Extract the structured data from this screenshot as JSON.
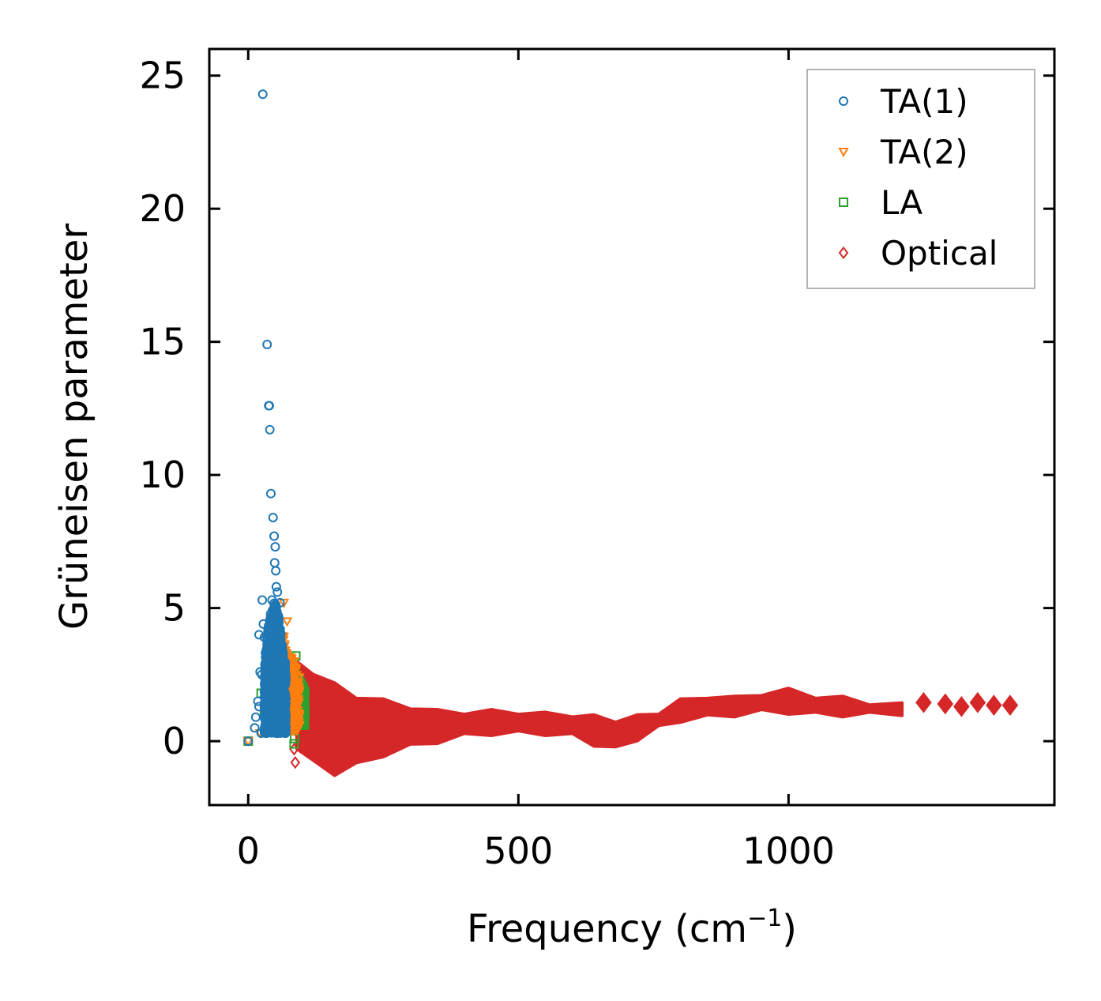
{
  "chart_data": {
    "type": "scatter",
    "title": "",
    "xlabel": "Frequency (cm",
    "xlabel_exponent": "−1",
    "xlabel_close": ")",
    "ylabel": "Grüneisen parameter",
    "xlim": [
      -72,
      1492
    ],
    "ylim": [
      -2.4,
      26.0
    ],
    "xticks": [
      0,
      500,
      1000
    ],
    "xtick_labels": [
      "0",
      "500",
      "1000"
    ],
    "yticks": [
      0,
      5,
      10,
      15,
      20,
      25
    ],
    "ytick_labels": [
      "0",
      "5",
      "10",
      "15",
      "20",
      "25"
    ],
    "grid": false,
    "legend_position": "top-right",
    "series": [
      {
        "name": "TA(1)",
        "marker": "circle",
        "color": "#1f77b4",
        "points": [
          [
            27,
            24.3
          ],
          [
            35,
            14.9
          ],
          [
            38,
            12.6
          ],
          [
            39,
            12.6
          ],
          [
            40,
            11.7
          ],
          [
            42,
            9.3
          ],
          [
            46,
            8.4
          ],
          [
            48,
            7.7
          ],
          [
            50,
            7.3
          ],
          [
            49,
            6.7
          ],
          [
            51,
            6.4
          ],
          [
            52,
            5.8
          ],
          [
            54,
            5.6
          ],
          [
            44,
            5.3
          ],
          [
            26,
            5.3
          ],
          [
            59,
            5.2
          ],
          [
            28,
            4.4
          ],
          [
            20,
            4.0
          ],
          [
            30,
            3.9
          ],
          [
            22,
            2.6
          ],
          [
            25,
            2.5
          ],
          [
            18,
            1.5
          ],
          [
            20,
            1.3
          ],
          [
            14,
            0.9
          ],
          [
            12,
            0.5
          ],
          [
            0,
            0.0
          ],
          [
            24,
            0.3
          ]
        ],
        "dense_regions": [
          {
            "x_min": 30,
            "x_max": 70,
            "y_min": 0.3,
            "y_max": 5.2
          }
        ]
      },
      {
        "name": "TA(2)",
        "marker": "triangle-down",
        "color": "#ff7f0e",
        "points": [
          [
            0,
            0.0
          ],
          [
            66,
            5.2
          ],
          [
            72,
            4.5
          ],
          [
            85,
            3.0
          ],
          [
            90,
            1.5
          ],
          [
            78,
            0.8
          ],
          [
            60,
            0.4
          ],
          [
            22,
            0.3
          ]
        ],
        "dense_regions": [
          {
            "x_min": 55,
            "x_max": 95,
            "y_min": 0.4,
            "y_max": 4.5
          }
        ]
      },
      {
        "name": "LA",
        "marker": "square",
        "color": "#2ca02c",
        "points": [
          [
            0,
            0.0
          ],
          [
            85,
            -0.1
          ],
          [
            86,
            0.1
          ],
          [
            24,
            1.8
          ],
          [
            30,
            1.0
          ],
          [
            88,
            3.2
          ],
          [
            95,
            2.3
          ],
          [
            100,
            1.2
          ],
          [
            92,
            0.6
          ]
        ],
        "dense_regions": [
          {
            "x_min": 70,
            "x_max": 105,
            "y_min": 0.6,
            "y_max": 3.2
          }
        ]
      },
      {
        "name": "Optical",
        "marker": "diamond",
        "color": "#d62728",
        "points": [
          [
            85,
            -0.3
          ],
          [
            87,
            -0.8
          ],
          [
            1250,
            1.45
          ],
          [
            1290,
            1.4
          ],
          [
            1320,
            1.3
          ],
          [
            1350,
            1.45
          ],
          [
            1380,
            1.35
          ],
          [
            1410,
            1.35
          ]
        ],
        "envelope": {
          "x": [
            90,
            120,
            160,
            200,
            250,
            300,
            350,
            400,
            450,
            500,
            550,
            600,
            640,
            680,
            720,
            760,
            800,
            850,
            900,
            950,
            1000,
            1050,
            1100,
            1150,
            1210
          ],
          "upper": [
            2.9,
            2.6,
            2.1,
            1.7,
            1.5,
            1.3,
            1.1,
            1.1,
            1.1,
            1.1,
            1.0,
            1.0,
            0.9,
            0.8,
            0.9,
            1.1,
            1.5,
            1.7,
            1.6,
            1.8,
            1.9,
            1.7,
            1.6,
            1.45,
            1.35
          ],
          "lower": [
            -0.2,
            -0.8,
            -1.2,
            -0.9,
            -0.5,
            -0.2,
            0.0,
            0.2,
            0.3,
            0.3,
            0.3,
            0.2,
            -0.1,
            -0.3,
            0.1,
            0.5,
            0.8,
            0.9,
            1.0,
            1.1,
            1.1,
            1.0,
            1.0,
            1.0,
            1.05
          ]
        }
      }
    ]
  }
}
